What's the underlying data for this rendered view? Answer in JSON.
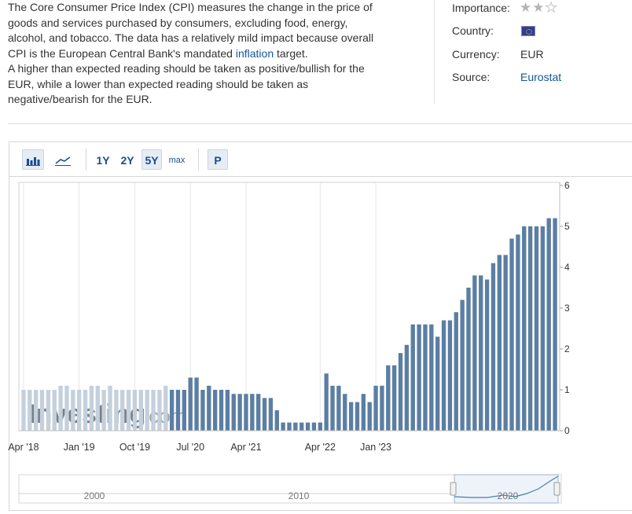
{
  "description": {
    "line1": "The Core Consumer Price Index (CPI) measures the change in the price of",
    "line2": "goods and services purchased by consumers, excluding food, energy,",
    "line3": "alcohol, and tobacco. The data has a relatively mild impact because overall",
    "line4_pre": "CPI is the European Central Bank's mandated ",
    "line4_link": "inflation",
    "line4_post": " target.",
    "line5": "A higher than expected reading should be taken as positive/bullish for the",
    "line6": "EUR, while a lower than expected reading should be taken as",
    "line7": "negative/bearish for the EUR."
  },
  "meta": {
    "importance_label": "Importance:",
    "importance_stars": 2,
    "importance_max": 3,
    "country_label": "Country:",
    "country_flag": "eu-flag-icon",
    "currency_label": "Currency:",
    "currency_value": "EUR",
    "source_label": "Source:",
    "source_value": "Eurostat"
  },
  "toolbar": {
    "bar_icon": "bar-chart-icon",
    "line_icon": "line-chart-icon",
    "range_1y": "1Y",
    "range_2y": "2Y",
    "range_5y": "5Y",
    "range_max": "max",
    "p_label": "P",
    "active_range": "5Y"
  },
  "watermark": {
    "brand": "Investing",
    "suffix": ".com"
  },
  "colors": {
    "bar": "#5b7ea3",
    "bar_faded": "#c4d0dc",
    "text": "#333333",
    "link": "#1256a0",
    "navigator_line": "#4a7fb0",
    "navigator_fill": "#dbe8f4"
  },
  "chart_data": {
    "type": "bar",
    "yticks": [
      0,
      1,
      2,
      3,
      4,
      5,
      6
    ],
    "ylim": [
      0,
      6
    ],
    "x_tick_labels": [
      "Apr '18",
      "Jan '19",
      "Oct '19",
      "Jul '20",
      "Apr '21",
      "Apr '22",
      "Jan '23"
    ],
    "x_tick_indices": [
      0,
      9,
      18,
      27,
      36,
      48,
      57
    ],
    "values": [
      1.0,
      1.0,
      1.0,
      1.0,
      1.0,
      1.0,
      1.1,
      1.1,
      1.0,
      1.0,
      1.0,
      1.1,
      1.1,
      1.0,
      1.1,
      1.0,
      1.0,
      1.0,
      1.0,
      1.0,
      1.0,
      1.0,
      1.0,
      1.1,
      1.0,
      1.0,
      1.0,
      1.3,
      1.3,
      1.0,
      1.1,
      1.0,
      1.0,
      1.0,
      0.9,
      0.9,
      0.9,
      0.9,
      0.9,
      0.8,
      0.8,
      0.5,
      0.2,
      0.2,
      0.2,
      0.2,
      0.2,
      0.2,
      0.2,
      1.4,
      1.1,
      1.1,
      0.9,
      0.7,
      0.7,
      0.9,
      0.7,
      1.1,
      1.1,
      1.6,
      1.6,
      1.9,
      2.1,
      2.6,
      2.6,
      2.6,
      2.6,
      2.3,
      2.7,
      2.7,
      2.9,
      3.2,
      3.5,
      3.8,
      3.8,
      3.7,
      4.1,
      4.3,
      4.3,
      4.7,
      4.8,
      5.0,
      5.0,
      5.0,
      5.0,
      5.2,
      5.2
    ]
  },
  "navigator": {
    "labels": [
      "2000",
      "2010",
      "2020"
    ]
  }
}
